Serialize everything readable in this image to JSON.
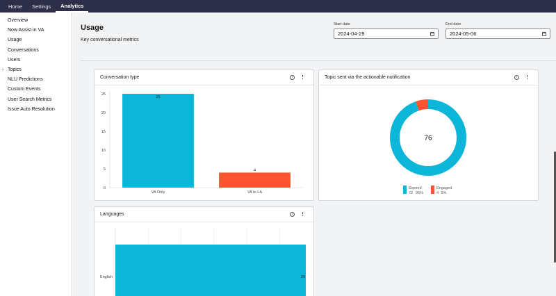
{
  "topnav": {
    "tabs": [
      "Home",
      "Settings",
      "Analytics"
    ],
    "active": "Analytics"
  },
  "sidebar": {
    "items": [
      "Overview",
      "Now Assist in VA",
      "Usage",
      "Conversations",
      "Users",
      "Topics",
      "NLU Predictions",
      "Custom Events",
      "User Search Metrics",
      "Issue Auto Resolution"
    ]
  },
  "page": {
    "title": "Usage",
    "subtitle": "Key conversational metrics"
  },
  "dates": {
    "start_label": "Start date",
    "start_value": "2024-04-29",
    "end_label": "End date",
    "end_value": "2024-05-06"
  },
  "cards": {
    "conversation_type": {
      "title": "Conversation type"
    },
    "topic_sent": {
      "title": "Topic sent via the actionable notification"
    },
    "languages": {
      "title": "Languages"
    }
  },
  "colors": {
    "cyan": "#0bb6d9",
    "orange": "#fc5331"
  },
  "chart_data": [
    {
      "type": "bar",
      "title": "Conversation type",
      "categories": [
        "VA Only",
        "VA to LA"
      ],
      "values": [
        25,
        4
      ],
      "ylim": [
        0,
        25
      ],
      "yticks": [
        0,
        5,
        10,
        15,
        20,
        25
      ],
      "data_labels": [
        "25",
        "4"
      ],
      "colors": [
        "#0bb6d9",
        "#fc5331"
      ],
      "grid": false
    },
    {
      "type": "pie",
      "title": "Topic sent via the actionable notification",
      "center_label": "76",
      "slices": [
        {
          "name": "Expired",
          "value": 72,
          "percent": "95%",
          "color": "#0bb6d9"
        },
        {
          "name": "Engaged",
          "value": 4,
          "percent": "5%",
          "color": "#fc5331"
        }
      ],
      "legend": "bottom"
    },
    {
      "type": "bar",
      "orientation": "horizontal",
      "title": "Languages",
      "categories": [
        "English"
      ],
      "values": [
        29
      ],
      "data_labels": [
        "29"
      ],
      "color": "#0bb6d9",
      "grid": true
    }
  ]
}
